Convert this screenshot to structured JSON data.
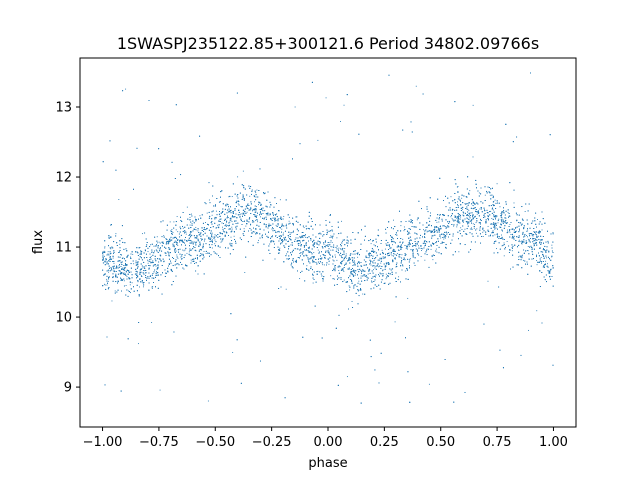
{
  "chart_data": {
    "type": "scatter",
    "title": "1SWASPJ235122.85+300121.6 Period 34802.09766s",
    "xlabel": "phase",
    "ylabel": "flux",
    "xlim": [
      -1.1,
      1.1
    ],
    "ylim": [
      8.43,
      13.7
    ],
    "xticks": [
      -1.0,
      -0.75,
      -0.5,
      -0.25,
      0.0,
      0.25,
      0.5,
      0.75,
      1.0
    ],
    "xtick_labels": [
      "−1.00",
      "−0.75",
      "−0.50",
      "−0.25",
      "0.00",
      "0.25",
      "0.50",
      "0.75",
      "1.00"
    ],
    "yticks": [
      9,
      10,
      11,
      12,
      13
    ],
    "ytick_labels": [
      "9",
      "10",
      "11",
      "12",
      "13"
    ],
    "grid": false,
    "point_color": "#1f77b4",
    "model": {
      "description_points": [
        {
          "x": -1.0,
          "y": 10.75
        },
        {
          "x": -0.85,
          "y": 10.7
        },
        {
          "x": -0.6,
          "y": 11.1
        },
        {
          "x": -0.35,
          "y": 11.5
        },
        {
          "x": -0.1,
          "y": 11.0
        },
        {
          "x": 0.15,
          "y": 10.7
        },
        {
          "x": 0.4,
          "y": 11.1
        },
        {
          "x": 0.65,
          "y": 11.5
        },
        {
          "x": 0.9,
          "y": 11.1
        },
        {
          "x": 1.0,
          "y": 10.8
        }
      ],
      "scatter_sigma": 0.2,
      "n_points": 9000,
      "outlier_fraction": 0.03
    }
  }
}
